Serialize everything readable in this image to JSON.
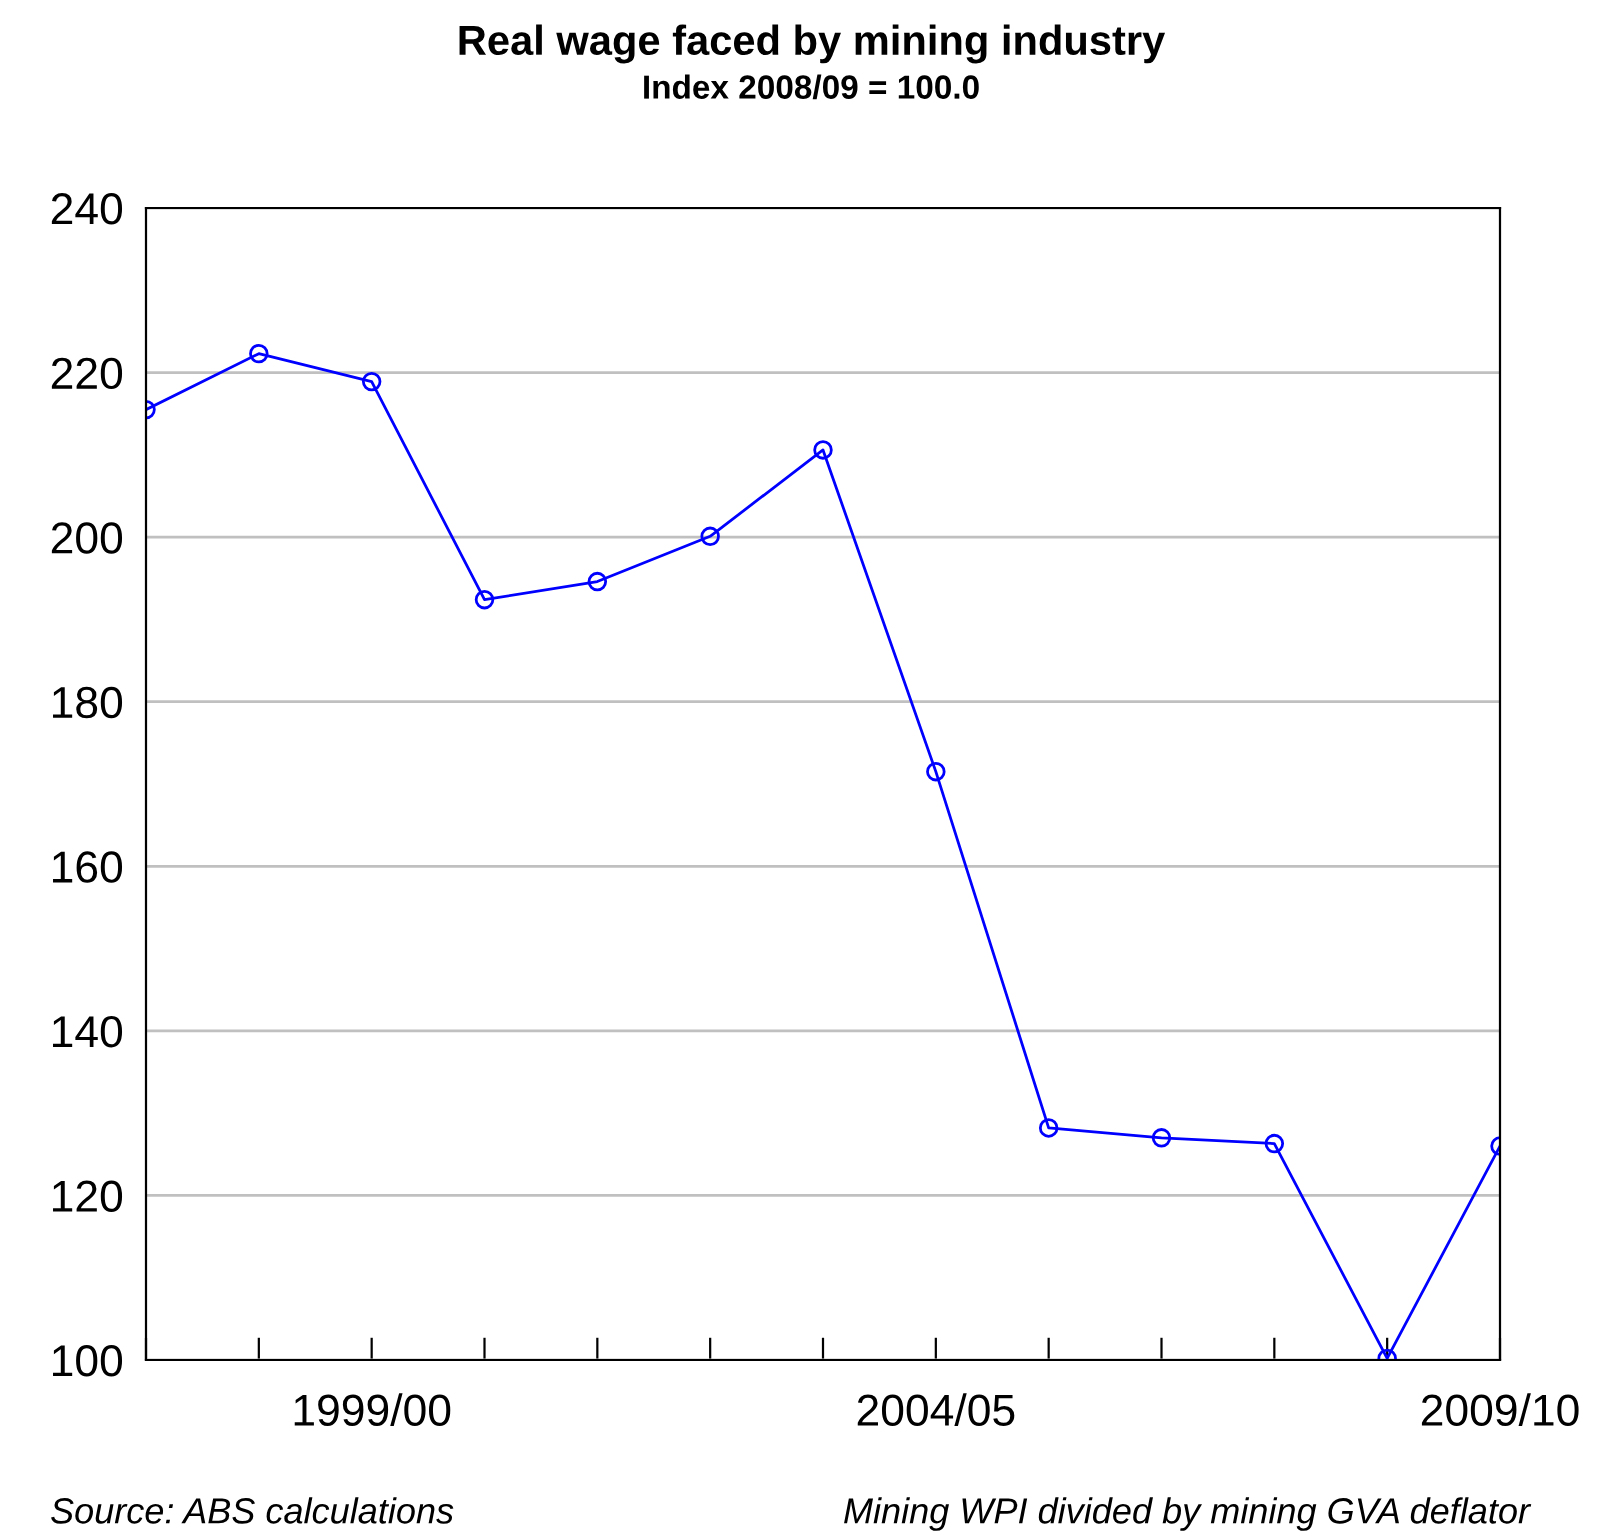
{
  "chart_data": {
    "type": "line",
    "title": "Real wage faced by mining industry",
    "subtitle": "Index 2008/09 = 100.0",
    "categories": [
      null,
      null,
      "1999/00",
      null,
      null,
      null,
      null,
      "2004/05",
      null,
      null,
      null,
      null,
      "2009/10"
    ],
    "series": [
      {
        "color": "#0000ff",
        "values": [
          215.5,
          222.3,
          218.9,
          192.4,
          194.6,
          200.1,
          210.6,
          171.5,
          128.2,
          127.0,
          126.3,
          100.2,
          126.0
        ]
      }
    ],
    "ylim": [
      100,
      240
    ],
    "yticks": [
      100,
      120,
      140,
      160,
      180,
      200,
      220,
      240
    ],
    "grid": "y",
    "marker": "circle",
    "line_style": "solid",
    "annotations": [
      "Source: ABS calculations",
      "Mining WPI divided by mining GVA deflator"
    ]
  }
}
